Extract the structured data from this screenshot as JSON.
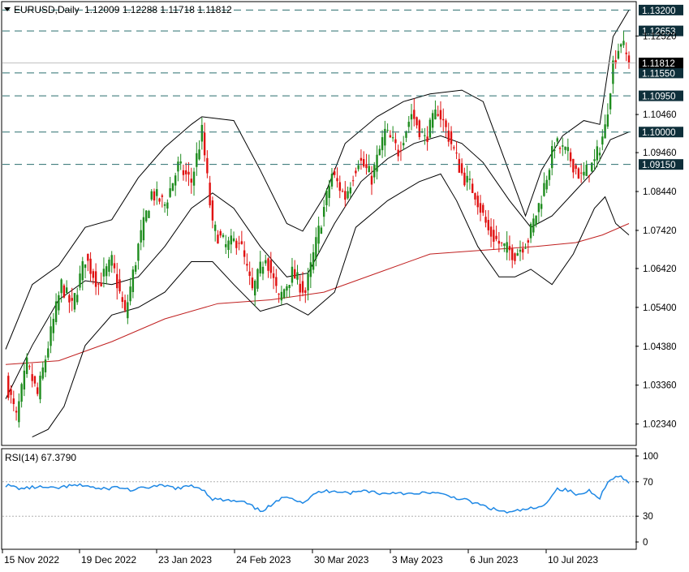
{
  "header": {
    "symbol": "EURUSD,Daily",
    "ohlc": "1.12009 1.12288 1.11718 1.11812"
  },
  "colors": {
    "background": "#ffffff",
    "bull": "#1e8c1e",
    "bear": "#e01010",
    "bollinger": "#000000",
    "moving_average": "#c02020",
    "rsi_line": "#1e88e5",
    "level_line": "#2a6f6f",
    "tag_bg": "#0e2f3a",
    "price_tag_bg": "#000000"
  },
  "chart_data": [
    {
      "type": "candlestick",
      "series": [
        {
          "name": "EURUSD,Daily"
        }
      ],
      "x_labels": [
        "15 Nov 2022",
        "19 Dec 2022",
        "23 Jan 2023",
        "24 Feb 2023",
        "30 Mar 2023",
        "3 May 2023",
        "6 Jun 2023",
        "10 Jul 2023"
      ],
      "y_ticks": [
        "1.12520",
        "1.10460",
        "1.09460",
        "1.08440",
        "1.07420",
        "1.06420",
        "1.05400",
        "1.04380",
        "1.03360",
        "1.02340"
      ],
      "ylim": [
        1.018,
        1.134
      ],
      "levels": [
        "1.13200",
        "1.12653",
        "1.11550",
        "1.10950",
        "1.10000",
        "1.09150"
      ],
      "current_price": "1.11812",
      "current_price_value": 1.11812,
      "level_values": [
        1.132,
        1.12653,
        1.1155,
        1.1095,
        1.1,
        1.0915
      ],
      "price_path": [
        {
          "t": 0,
          "p": 1.035
        },
        {
          "t": 4,
          "p": 1.025
        },
        {
          "t": 8,
          "p": 1.039
        },
        {
          "t": 12,
          "p": 1.031
        },
        {
          "t": 16,
          "p": 1.044
        },
        {
          "t": 21,
          "p": 1.06
        },
        {
          "t": 25,
          "p": 1.054
        },
        {
          "t": 30,
          "p": 1.067
        },
        {
          "t": 35,
          "p": 1.06
        },
        {
          "t": 40,
          "p": 1.066
        },
        {
          "t": 45,
          "p": 1.052
        },
        {
          "t": 50,
          "p": 1.07
        },
        {
          "t": 55,
          "p": 1.084
        },
        {
          "t": 60,
          "p": 1.081
        },
        {
          "t": 65,
          "p": 1.091
        },
        {
          "t": 70,
          "p": 1.087
        },
        {
          "t": 74,
          "p": 1.1
        },
        {
          "t": 78,
          "p": 1.075
        },
        {
          "t": 83,
          "p": 1.07
        },
        {
          "t": 88,
          "p": 1.072
        },
        {
          "t": 93,
          "p": 1.058
        },
        {
          "t": 98,
          "p": 1.068
        },
        {
          "t": 103,
          "p": 1.056
        },
        {
          "t": 108,
          "p": 1.063
        },
        {
          "t": 113,
          "p": 1.058
        },
        {
          "t": 118,
          "p": 1.074
        },
        {
          "t": 123,
          "p": 1.089
        },
        {
          "t": 128,
          "p": 1.083
        },
        {
          "t": 133,
          "p": 1.093
        },
        {
          "t": 138,
          "p": 1.088
        },
        {
          "t": 143,
          "p": 1.1
        },
        {
          "t": 148,
          "p": 1.095
        },
        {
          "t": 153,
          "p": 1.105
        },
        {
          "t": 158,
          "p": 1.098
        },
        {
          "t": 163,
          "p": 1.106
        },
        {
          "t": 167,
          "p": 1.099
        },
        {
          "t": 172,
          "p": 1.089
        },
        {
          "t": 177,
          "p": 1.084
        },
        {
          "t": 182,
          "p": 1.074
        },
        {
          "t": 187,
          "p": 1.07
        },
        {
          "t": 192,
          "p": 1.068
        },
        {
          "t": 197,
          "p": 1.072
        },
        {
          "t": 202,
          "p": 1.083
        },
        {
          "t": 207,
          "p": 1.097
        },
        {
          "t": 212,
          "p": 1.094
        },
        {
          "t": 217,
          "p": 1.088
        },
        {
          "t": 222,
          "p": 1.092
        },
        {
          "t": 226,
          "p": 1.101
        },
        {
          "t": 229,
          "p": 1.118
        },
        {
          "t": 232,
          "p": 1.124
        },
        {
          "t": 235,
          "p": 1.118
        }
      ],
      "bb_upper": [
        {
          "t": 0,
          "p": 1.043
        },
        {
          "t": 10,
          "p": 1.06
        },
        {
          "t": 20,
          "p": 1.065
        },
        {
          "t": 30,
          "p": 1.075
        },
        {
          "t": 40,
          "p": 1.077
        },
        {
          "t": 50,
          "p": 1.088
        },
        {
          "t": 60,
          "p": 1.096
        },
        {
          "t": 70,
          "p": 1.102
        },
        {
          "t": 74,
          "p": 1.104
        },
        {
          "t": 86,
          "p": 1.103
        },
        {
          "t": 96,
          "p": 1.09
        },
        {
          "t": 106,
          "p": 1.076
        },
        {
          "t": 112,
          "p": 1.074
        },
        {
          "t": 120,
          "p": 1.083
        },
        {
          "t": 128,
          "p": 1.097
        },
        {
          "t": 140,
          "p": 1.104
        },
        {
          "t": 150,
          "p": 1.108
        },
        {
          "t": 160,
          "p": 1.11
        },
        {
          "t": 172,
          "p": 1.111
        },
        {
          "t": 180,
          "p": 1.108
        },
        {
          "t": 188,
          "p": 1.093
        },
        {
          "t": 196,
          "p": 1.078
        },
        {
          "t": 202,
          "p": 1.09
        },
        {
          "t": 210,
          "p": 1.099
        },
        {
          "t": 218,
          "p": 1.103
        },
        {
          "t": 224,
          "p": 1.102
        },
        {
          "t": 229,
          "p": 1.125
        },
        {
          "t": 235,
          "p": 1.132
        }
      ],
      "bb_middle": [
        {
          "t": 0,
          "p": 1.03
        },
        {
          "t": 10,
          "p": 1.044
        },
        {
          "t": 20,
          "p": 1.056
        },
        {
          "t": 30,
          "p": 1.061
        },
        {
          "t": 40,
          "p": 1.06
        },
        {
          "t": 50,
          "p": 1.062
        },
        {
          "t": 60,
          "p": 1.07
        },
        {
          "t": 70,
          "p": 1.08
        },
        {
          "t": 78,
          "p": 1.084
        },
        {
          "t": 86,
          "p": 1.08
        },
        {
          "t": 96,
          "p": 1.07
        },
        {
          "t": 106,
          "p": 1.062
        },
        {
          "t": 114,
          "p": 1.063
        },
        {
          "t": 124,
          "p": 1.076
        },
        {
          "t": 134,
          "p": 1.087
        },
        {
          "t": 144,
          "p": 1.093
        },
        {
          "t": 154,
          "p": 1.097
        },
        {
          "t": 164,
          "p": 1.099
        },
        {
          "t": 172,
          "p": 1.097
        },
        {
          "t": 180,
          "p": 1.092
        },
        {
          "t": 190,
          "p": 1.082
        },
        {
          "t": 198,
          "p": 1.075
        },
        {
          "t": 206,
          "p": 1.078
        },
        {
          "t": 214,
          "p": 1.084
        },
        {
          "t": 222,
          "p": 1.09
        },
        {
          "t": 228,
          "p": 1.098
        },
        {
          "t": 235,
          "p": 1.1
        }
      ],
      "bb_lower": [
        {
          "t": 10,
          "p": 1.02
        },
        {
          "t": 16,
          "p": 1.022
        },
        {
          "t": 22,
          "p": 1.028
        },
        {
          "t": 30,
          "p": 1.044
        },
        {
          "t": 40,
          "p": 1.052
        },
        {
          "t": 50,
          "p": 1.054
        },
        {
          "t": 60,
          "p": 1.058
        },
        {
          "t": 70,
          "p": 1.066
        },
        {
          "t": 78,
          "p": 1.066
        },
        {
          "t": 86,
          "p": 1.06
        },
        {
          "t": 96,
          "p": 1.053
        },
        {
          "t": 106,
          "p": 1.055
        },
        {
          "t": 114,
          "p": 1.052
        },
        {
          "t": 124,
          "p": 1.058
        },
        {
          "t": 132,
          "p": 1.075
        },
        {
          "t": 144,
          "p": 1.082
        },
        {
          "t": 156,
          "p": 1.087
        },
        {
          "t": 164,
          "p": 1.089
        },
        {
          "t": 170,
          "p": 1.082
        },
        {
          "t": 178,
          "p": 1.07
        },
        {
          "t": 186,
          "p": 1.062
        },
        {
          "t": 192,
          "p": 1.062
        },
        {
          "t": 198,
          "p": 1.064
        },
        {
          "t": 206,
          "p": 1.06
        },
        {
          "t": 214,
          "p": 1.068
        },
        {
          "t": 222,
          "p": 1.08
        },
        {
          "t": 226,
          "p": 1.083
        },
        {
          "t": 230,
          "p": 1.076
        },
        {
          "t": 235,
          "p": 1.073
        }
      ],
      "moving_average": [
        {
          "t": 0,
          "p": 1.039
        },
        {
          "t": 20,
          "p": 1.04
        },
        {
          "t": 40,
          "p": 1.045
        },
        {
          "t": 60,
          "p": 1.051
        },
        {
          "t": 80,
          "p": 1.055
        },
        {
          "t": 100,
          "p": 1.056
        },
        {
          "t": 120,
          "p": 1.058
        },
        {
          "t": 140,
          "p": 1.063
        },
        {
          "t": 160,
          "p": 1.068
        },
        {
          "t": 180,
          "p": 1.069
        },
        {
          "t": 200,
          "p": 1.07
        },
        {
          "t": 215,
          "p": 1.071
        },
        {
          "t": 225,
          "p": 1.073
        },
        {
          "t": 235,
          "p": 1.076
        }
      ]
    },
    {
      "type": "line",
      "series": [
        {
          "name": "RSI(14) 67.3790"
        }
      ],
      "y_ticks": [
        "100",
        "70",
        "30",
        "0"
      ],
      "ylim": [
        0,
        100
      ],
      "levels": [
        70,
        30
      ],
      "values": [
        {
          "t": 0,
          "p": 66
        },
        {
          "t": 6,
          "p": 62
        },
        {
          "t": 12,
          "p": 64
        },
        {
          "t": 18,
          "p": 62
        },
        {
          "t": 24,
          "p": 65
        },
        {
          "t": 30,
          "p": 66
        },
        {
          "t": 36,
          "p": 61
        },
        {
          "t": 42,
          "p": 64
        },
        {
          "t": 48,
          "p": 60
        },
        {
          "t": 54,
          "p": 64
        },
        {
          "t": 60,
          "p": 65
        },
        {
          "t": 66,
          "p": 62
        },
        {
          "t": 70,
          "p": 66
        },
        {
          "t": 74,
          "p": 62
        },
        {
          "t": 78,
          "p": 50
        },
        {
          "t": 84,
          "p": 48
        },
        {
          "t": 90,
          "p": 46
        },
        {
          "t": 96,
          "p": 36
        },
        {
          "t": 100,
          "p": 42
        },
        {
          "t": 106,
          "p": 54
        },
        {
          "t": 112,
          "p": 46
        },
        {
          "t": 118,
          "p": 58
        },
        {
          "t": 124,
          "p": 60
        },
        {
          "t": 130,
          "p": 57
        },
        {
          "t": 136,
          "p": 60
        },
        {
          "t": 142,
          "p": 56
        },
        {
          "t": 148,
          "p": 58
        },
        {
          "t": 154,
          "p": 55
        },
        {
          "t": 160,
          "p": 58
        },
        {
          "t": 166,
          "p": 54
        },
        {
          "t": 172,
          "p": 50
        },
        {
          "t": 178,
          "p": 44
        },
        {
          "t": 184,
          "p": 38
        },
        {
          "t": 190,
          "p": 34
        },
        {
          "t": 196,
          "p": 38
        },
        {
          "t": 202,
          "p": 40
        },
        {
          "t": 208,
          "p": 62
        },
        {
          "t": 212,
          "p": 60
        },
        {
          "t": 216,
          "p": 54
        },
        {
          "t": 220,
          "p": 60
        },
        {
          "t": 224,
          "p": 52
        },
        {
          "t": 228,
          "p": 74
        },
        {
          "t": 232,
          "p": 76
        },
        {
          "t": 235,
          "p": 67
        }
      ]
    }
  ]
}
